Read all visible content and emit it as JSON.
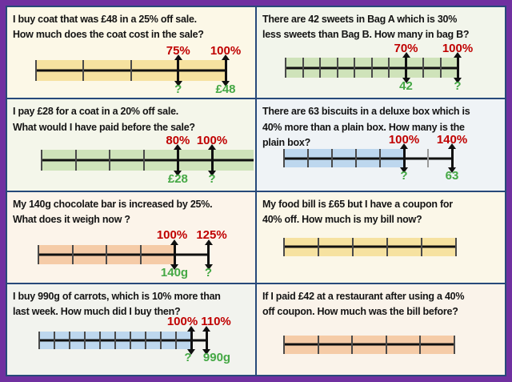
{
  "frame": {
    "outer_border_color": "#7030A0",
    "grid_line_color": "#27497A"
  },
  "colors": {
    "percent_label": "#C00000",
    "value_label": "#45A845",
    "question_text": "#141414",
    "bar_yellow": "#F6E2A0",
    "bar_green": "#CFE3BA",
    "bar_blue": "#BDD7EE",
    "bar_peach": "#F5CBA7"
  },
  "cells": [
    {
      "question": "I buy coat that was £48 in a 25% off sale.\nHow much does the coat cost in the sale?",
      "bar": {
        "color": "#F6E2A0",
        "segments": 4,
        "unit_percent": 25,
        "extension_segments": 0,
        "extension_ticks": [],
        "arrows": [
          {
            "at_segment": 3,
            "percent_label": "75%",
            "value_label": "?"
          },
          {
            "at_segment": 4,
            "percent_label": "100%",
            "value_label": "£48"
          }
        ]
      }
    },
    {
      "question": "There are 42 sweets in Bag A which is 30%\nless sweets than Bag B. How many in bag B?",
      "bar": {
        "color": "#CFE3BA",
        "segments": 10,
        "unit_percent": 10,
        "extension_segments": 0,
        "extension_ticks": [],
        "arrows": [
          {
            "at_segment": 7,
            "percent_label": "70%",
            "value_label": "42"
          },
          {
            "at_segment": 10,
            "percent_label": "100%",
            "value_label": "?"
          }
        ]
      }
    },
    {
      "question": "I pay £28 for a coat in a 20% off sale.\nWhat would I have paid before the sale?",
      "bar": {
        "color": "#CFE3BA",
        "segments": 5,
        "unit_percent": 20,
        "extension_segments": 0,
        "extension_ticks": [],
        "arrows": [
          {
            "at_segment": 4,
            "percent_label": "80%",
            "value_label": "£28"
          },
          {
            "at_segment": 5,
            "percent_label": "100%",
            "value_label": "?"
          }
        ]
      }
    },
    {
      "question": "There are 63 biscuits in a deluxe box which is\n40% more than a plain box. How many is the\nplain box?",
      "bar": {
        "color": "#BDD7EE",
        "segments": 5,
        "unit_percent": 20,
        "extension_segments": 2,
        "extension_ticks": [
          6
        ],
        "arrows": [
          {
            "at_segment": 5,
            "percent_label": "100%",
            "value_label": "?"
          },
          {
            "at_segment": 7,
            "percent_label": "140%",
            "value_label": "63"
          }
        ]
      }
    },
    {
      "question": "My 140g chocolate bar is increased by 25%.\nWhat does it weigh now ?",
      "bar": {
        "color": "#F5CBA7",
        "segments": 4,
        "unit_percent": 25,
        "extension_segments": 1,
        "extension_ticks": [],
        "arrows": [
          {
            "at_segment": 4,
            "percent_label": "100%",
            "value_label": "140g"
          },
          {
            "at_segment": 5,
            "percent_label": "125%",
            "value_label": "?"
          }
        ]
      }
    },
    {
      "question": "My food bill is £65 but I have a coupon for\n40% off. How much is my bill now?",
      "bar": {
        "color": "#F6E2A0",
        "segments": 5,
        "unit_percent": 20,
        "extension_segments": 0,
        "extension_ticks": [],
        "arrows": []
      }
    },
    {
      "question": "I buy 990g of carrots, which is 10% more than\nlast week. How much did I buy then?",
      "bar": {
        "color": "#BDD7EE",
        "segments": 10,
        "unit_percent": 10,
        "extension_segments": 1,
        "extension_ticks": [],
        "arrows": [
          {
            "at_segment": 10,
            "percent_label": "100%",
            "value_label": "?"
          },
          {
            "at_segment": 11,
            "percent_label": "110%",
            "value_label": "990g"
          }
        ]
      }
    },
    {
      "question": "If I paid £42 at a restaurant after using a 40%\noff coupon. How much was the bill before?",
      "bar": {
        "color": "#F5CBA7",
        "segments": 5,
        "unit_percent": 20,
        "extension_segments": 0,
        "extension_ticks": [],
        "arrows": []
      }
    }
  ]
}
